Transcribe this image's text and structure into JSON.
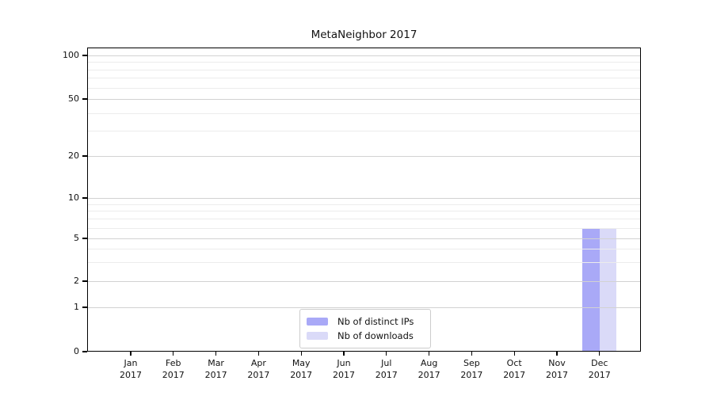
{
  "title": "MetaNeighbor 2017",
  "chart_data": {
    "type": "bar",
    "title": "MetaNeighbor 2017",
    "categories": [
      "Jan 2017",
      "Feb 2017",
      "Mar 2017",
      "Apr 2017",
      "May 2017",
      "Jun 2017",
      "Jul 2017",
      "Aug 2017",
      "Sep 2017",
      "Oct 2017",
      "Nov 2017",
      "Dec 2017"
    ],
    "x_tick_months": [
      "Jan",
      "Feb",
      "Mar",
      "Apr",
      "May",
      "Jun",
      "Jul",
      "Aug",
      "Sep",
      "Oct",
      "Nov",
      "Dec"
    ],
    "x_tick_year": "2017",
    "series": [
      {
        "name": "Nb of distinct IPs",
        "color": "#a9a9f7",
        "values": [
          0,
          0,
          0,
          0,
          0,
          0,
          0,
          0,
          0,
          0,
          0,
          6
        ]
      },
      {
        "name": "Nb of downloads",
        "color": "#dadaf8",
        "values": [
          0,
          0,
          0,
          0,
          0,
          0,
          0,
          0,
          0,
          0,
          0,
          6
        ]
      }
    ],
    "y_axis": {
      "ticks": [
        0,
        1,
        2,
        5,
        10,
        20,
        50,
        100
      ],
      "minor_ticks": [
        3,
        4,
        6,
        7,
        8,
        9,
        30,
        40,
        60,
        70,
        80,
        90
      ],
      "scale": "log-like with zero baseline",
      "range": [
        0,
        114
      ]
    },
    "legend": {
      "position": "inside-bottom-center",
      "entries": [
        "Nb of distinct IPs",
        "Nb of downloads"
      ]
    },
    "grid": {
      "horizontal_major": true,
      "horizontal_minor": true,
      "vertical": false
    }
  },
  "colors": {
    "background": "#ffffff",
    "bar_distinct_ips": "#a9a9f7",
    "bar_downloads": "#dadaf8",
    "grid_major": "#d2d2d2",
    "grid_minor": "#ececec",
    "axis_frame": "#000000",
    "text": "#111111",
    "legend_border": "#cccccc"
  }
}
